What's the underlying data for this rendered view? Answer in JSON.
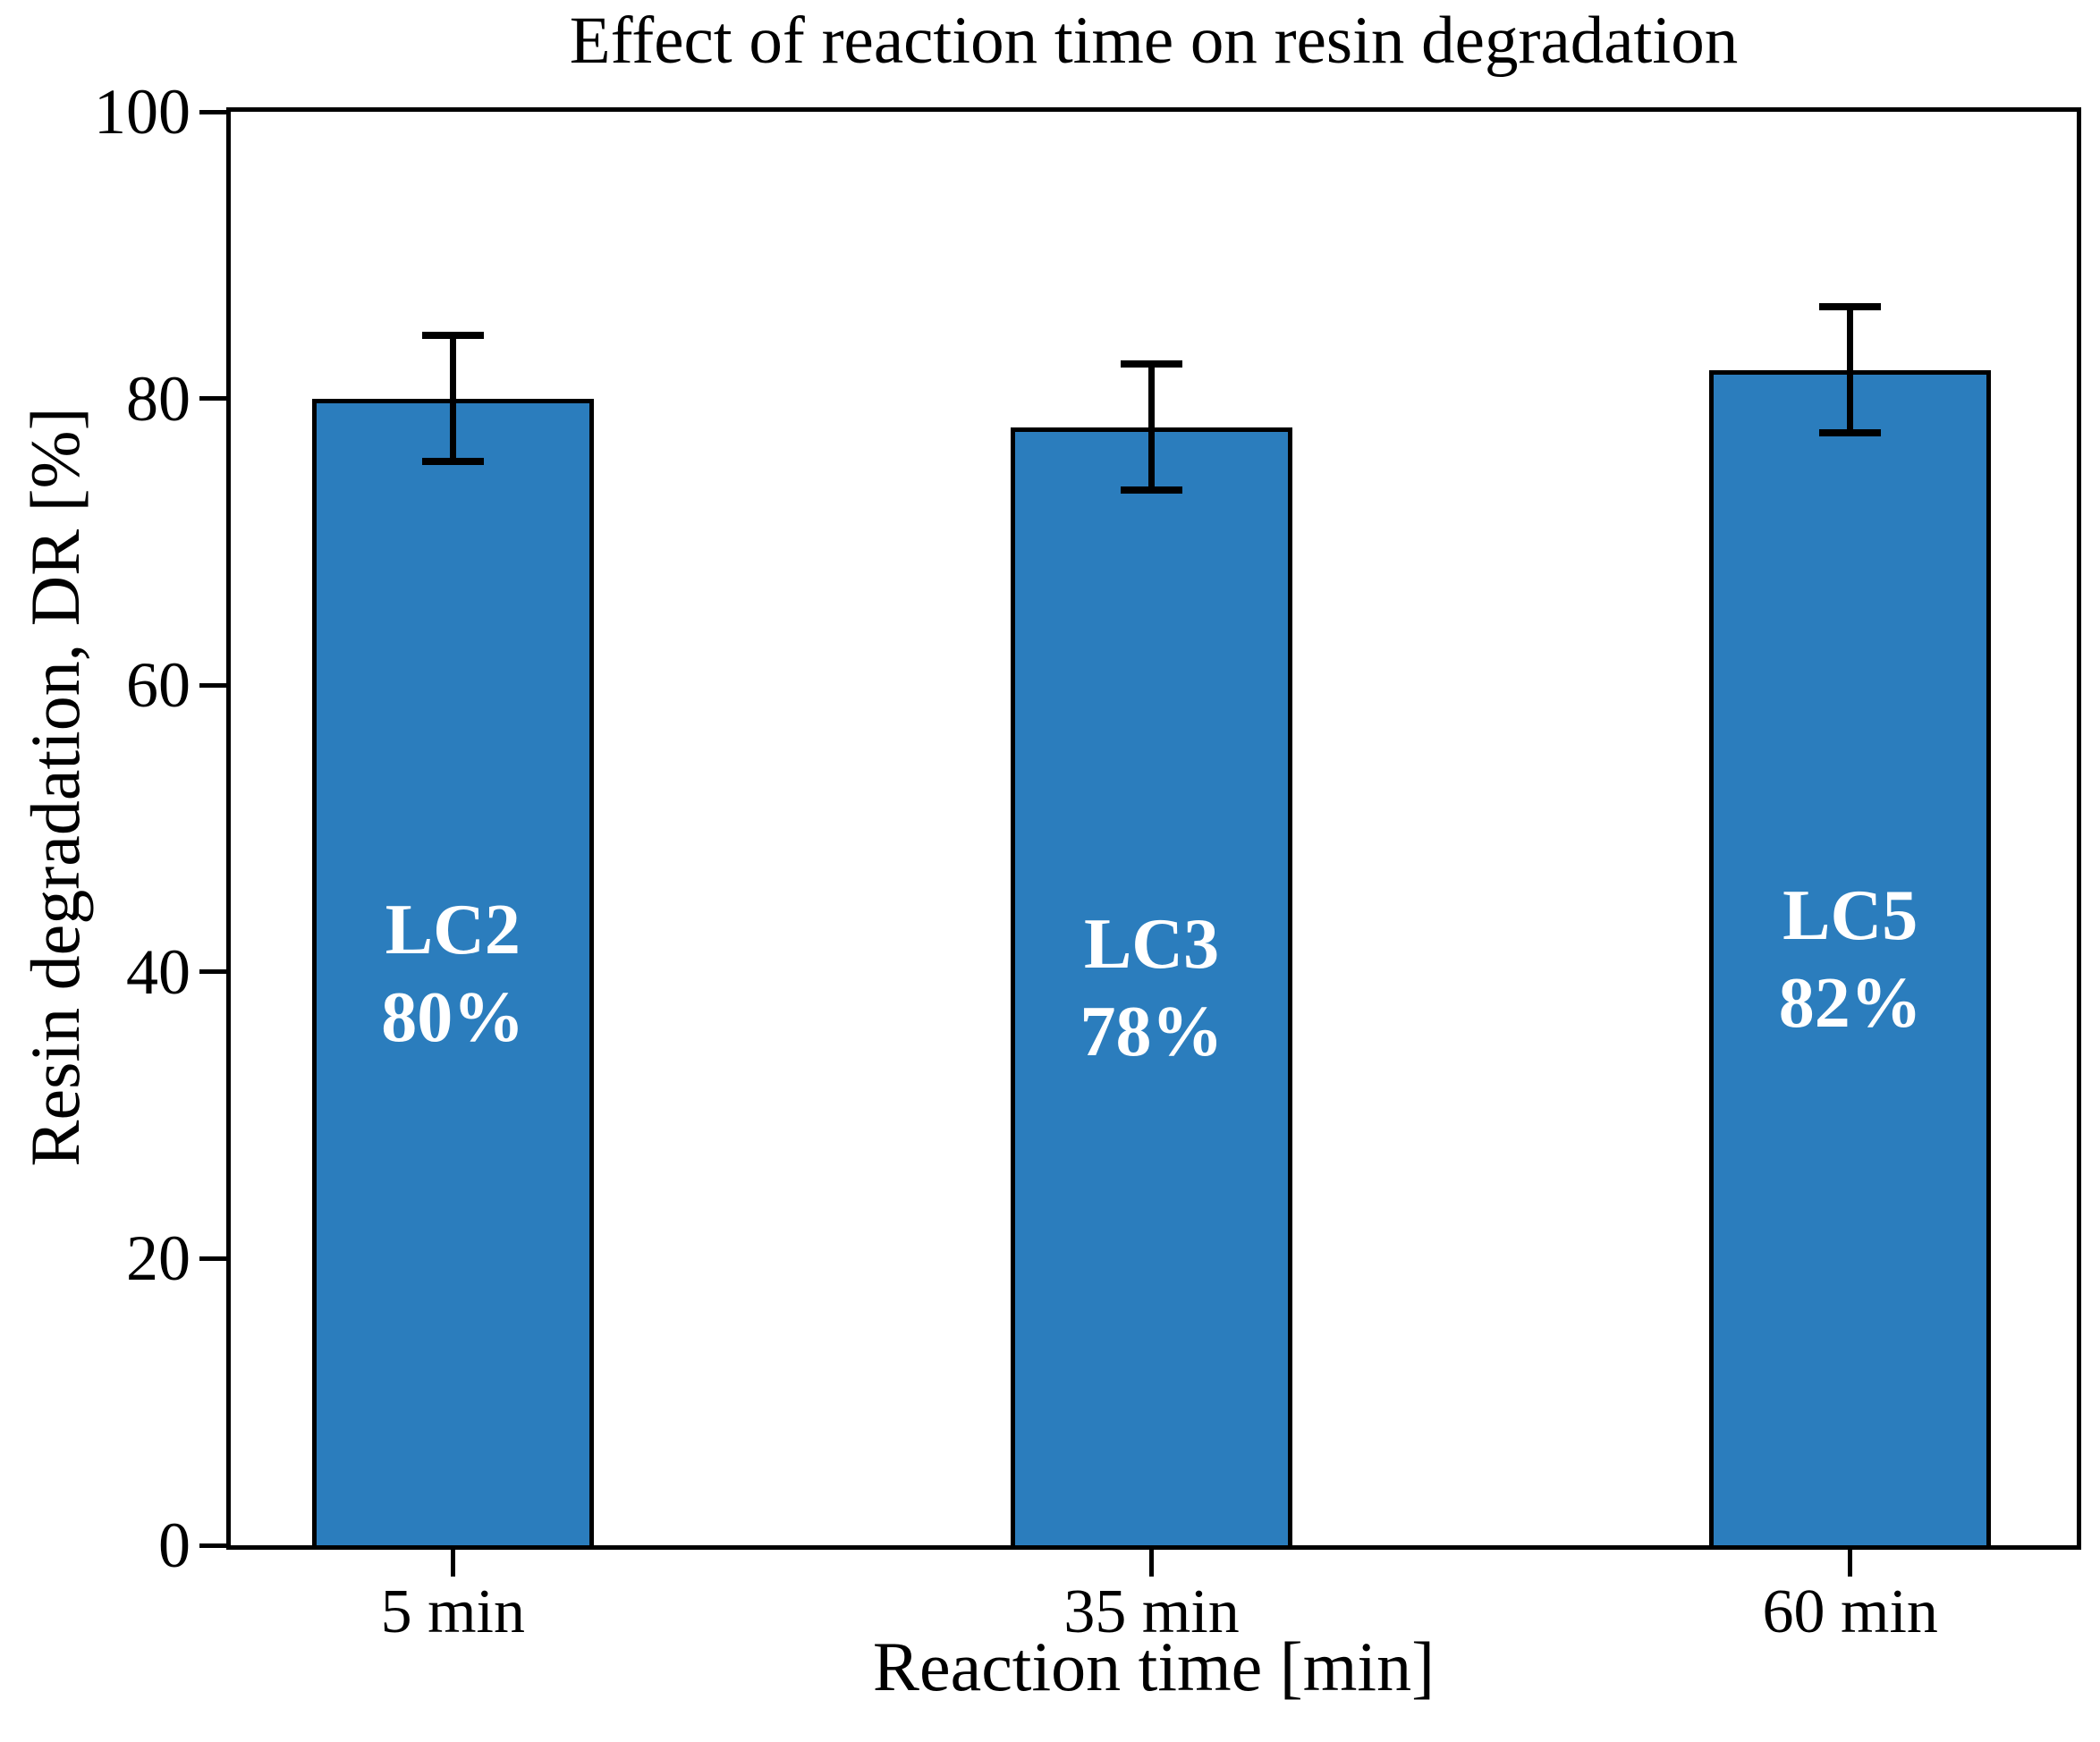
{
  "chart_data": {
    "type": "bar",
    "title": "Effect of reaction time on resin degradation",
    "xlabel": "Reaction time [min]",
    "ylabel": "Resin degradation, DR [%]",
    "categories": [
      "5 min",
      "35 min",
      "60 min"
    ],
    "values": [
      80,
      78,
      82
    ],
    "errors": [
      4.4,
      4.4,
      4.4
    ],
    "bar_labels": [
      [
        "LC2",
        "80%"
      ],
      [
        "LC3",
        "78%"
      ],
      [
        "LC5",
        "82%"
      ]
    ],
    "ylim": [
      0,
      100
    ],
    "yticks": [
      0,
      20,
      40,
      60,
      80,
      100
    ],
    "bar_color": "#2b7dbd",
    "edge_color": "#000000",
    "label_text_color": "#ffffff",
    "grid": "off",
    "legend": "none"
  }
}
